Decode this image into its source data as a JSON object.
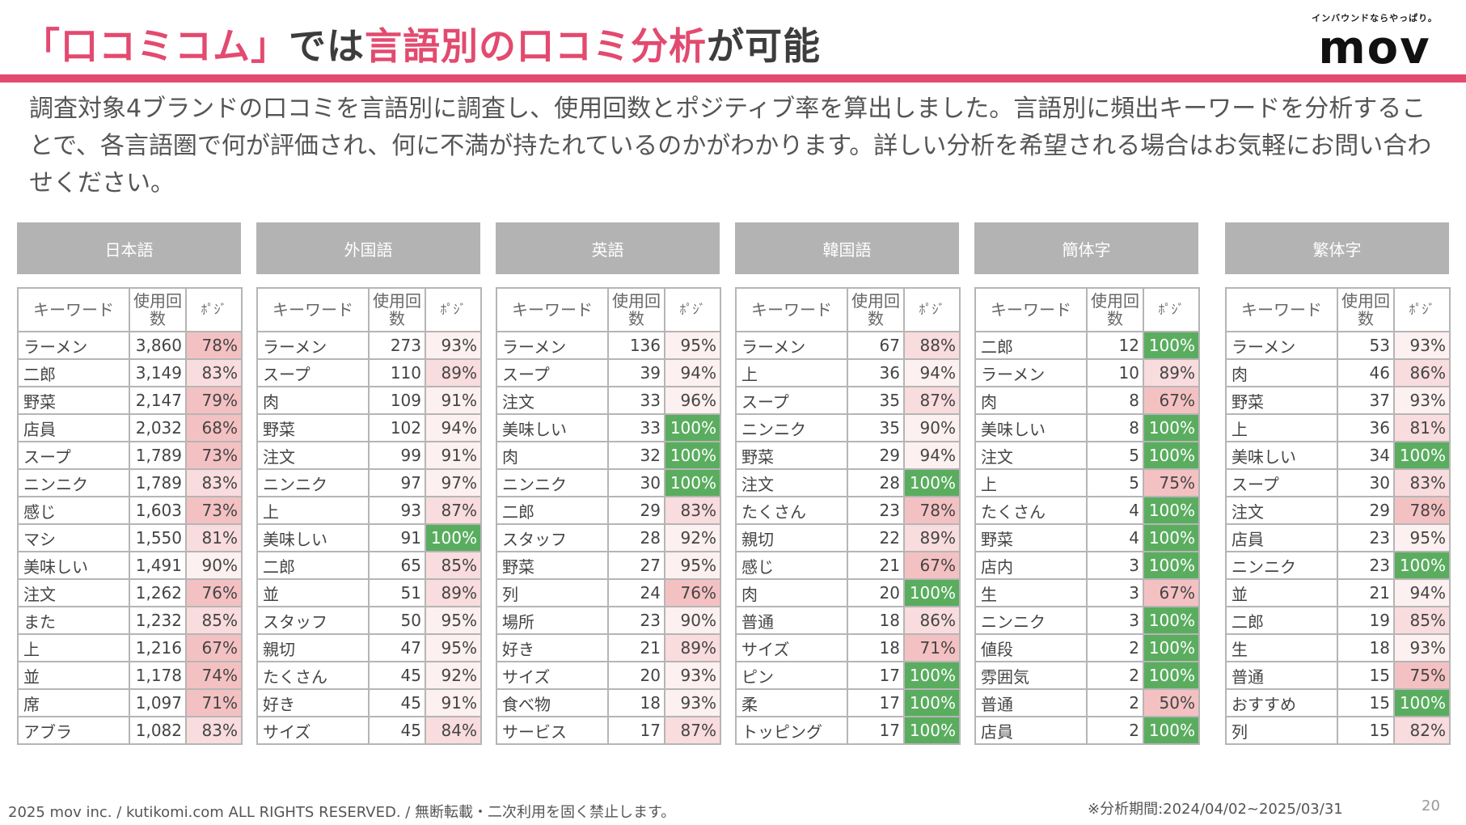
{
  "header": {
    "title_parts": [
      "「口コミコム」",
      "では",
      "言語別の口コミ分析",
      "が可能"
    ],
    "logo_tagline": "インバウンドならやっぱり。",
    "logo_word": "mov"
  },
  "description": "調査対象4ブランドの口コミを言語別に調査し、使用回数とポジティブ率を算出しました。言語別に頻出キーワードを分析することで、各言語圏で何が評価され、何に不満が持たれているのかがわかります。詳しい分析を希望される場合はお気軽にお問い合わせください。",
  "column_headers": {
    "keyword": "キーワード",
    "count": "使用回数",
    "posi": "ﾎﾟｼﾞ"
  },
  "colors": {
    "accent": "#e34a6f",
    "header_gray": "#b3b3b3",
    "green": "#5aad5f",
    "pink_dark": "#f4c1c3",
    "pink_mid": "#f9dcdd",
    "pink_light": "#fdf0f0"
  },
  "tables": [
    {
      "language": "日本語",
      "rows": [
        {
          "keyword": "ラーメン",
          "count": "3,860",
          "posi": "78%"
        },
        {
          "keyword": "二郎",
          "count": "3,149",
          "posi": "83%"
        },
        {
          "keyword": "野菜",
          "count": "2,147",
          "posi": "79%"
        },
        {
          "keyword": "店員",
          "count": "2,032",
          "posi": "68%"
        },
        {
          "keyword": "スープ",
          "count": "1,789",
          "posi": "73%"
        },
        {
          "keyword": "ニンニク",
          "count": "1,789",
          "posi": "83%"
        },
        {
          "keyword": "感じ",
          "count": "1,603",
          "posi": "73%"
        },
        {
          "keyword": "マシ",
          "count": "1,550",
          "posi": "81%"
        },
        {
          "keyword": "美味しい",
          "count": "1,491",
          "posi": "90%"
        },
        {
          "keyword": "注文",
          "count": "1,262",
          "posi": "76%"
        },
        {
          "keyword": "また",
          "count": "1,232",
          "posi": "85%"
        },
        {
          "keyword": "上",
          "count": "1,216",
          "posi": "67%"
        },
        {
          "keyword": "並",
          "count": "1,178",
          "posi": "74%"
        },
        {
          "keyword": "席",
          "count": "1,097",
          "posi": "71%"
        },
        {
          "keyword": "アブラ",
          "count": "1,082",
          "posi": "83%"
        }
      ]
    },
    {
      "language": "外国語",
      "rows": [
        {
          "keyword": "ラーメン",
          "count": "273",
          "posi": "93%"
        },
        {
          "keyword": "スープ",
          "count": "110",
          "posi": "89%"
        },
        {
          "keyword": "肉",
          "count": "109",
          "posi": "91%"
        },
        {
          "keyword": "野菜",
          "count": "102",
          "posi": "94%"
        },
        {
          "keyword": "注文",
          "count": "99",
          "posi": "91%"
        },
        {
          "keyword": "ニンニク",
          "count": "97",
          "posi": "97%"
        },
        {
          "keyword": "上",
          "count": "93",
          "posi": "87%"
        },
        {
          "keyword": "美味しい",
          "count": "91",
          "posi": "100%"
        },
        {
          "keyword": "二郎",
          "count": "65",
          "posi": "85%"
        },
        {
          "keyword": "並",
          "count": "51",
          "posi": "89%"
        },
        {
          "keyword": "スタッフ",
          "count": "50",
          "posi": "95%"
        },
        {
          "keyword": "親切",
          "count": "47",
          "posi": "95%"
        },
        {
          "keyword": "たくさん",
          "count": "45",
          "posi": "92%"
        },
        {
          "keyword": "好き",
          "count": "45",
          "posi": "91%"
        },
        {
          "keyword": "サイズ",
          "count": "45",
          "posi": "84%"
        }
      ]
    },
    {
      "language": "英語",
      "rows": [
        {
          "keyword": "ラーメン",
          "count": "136",
          "posi": "95%"
        },
        {
          "keyword": "スープ",
          "count": "39",
          "posi": "94%"
        },
        {
          "keyword": "注文",
          "count": "33",
          "posi": "96%"
        },
        {
          "keyword": "美味しい",
          "count": "33",
          "posi": "100%"
        },
        {
          "keyword": "肉",
          "count": "32",
          "posi": "100%"
        },
        {
          "keyword": "ニンニク",
          "count": "30",
          "posi": "100%"
        },
        {
          "keyword": "二郎",
          "count": "29",
          "posi": "83%"
        },
        {
          "keyword": "スタッフ",
          "count": "28",
          "posi": "92%"
        },
        {
          "keyword": "野菜",
          "count": "27",
          "posi": "95%"
        },
        {
          "keyword": "列",
          "count": "24",
          "posi": "76%"
        },
        {
          "keyword": "場所",
          "count": "23",
          "posi": "90%"
        },
        {
          "keyword": "好き",
          "count": "21",
          "posi": "89%"
        },
        {
          "keyword": "サイズ",
          "count": "20",
          "posi": "93%"
        },
        {
          "keyword": "食べ物",
          "count": "18",
          "posi": "93%"
        },
        {
          "keyword": "サービス",
          "count": "17",
          "posi": "87%"
        }
      ]
    },
    {
      "language": "韓国語",
      "rows": [
        {
          "keyword": "ラーメン",
          "count": "67",
          "posi": "88%"
        },
        {
          "keyword": "上",
          "count": "36",
          "posi": "94%"
        },
        {
          "keyword": "スープ",
          "count": "35",
          "posi": "87%"
        },
        {
          "keyword": "ニンニク",
          "count": "35",
          "posi": "90%"
        },
        {
          "keyword": "野菜",
          "count": "29",
          "posi": "94%"
        },
        {
          "keyword": "注文",
          "count": "28",
          "posi": "100%"
        },
        {
          "keyword": "たくさん",
          "count": "23",
          "posi": "78%"
        },
        {
          "keyword": "親切",
          "count": "22",
          "posi": "89%"
        },
        {
          "keyword": "感じ",
          "count": "21",
          "posi": "67%"
        },
        {
          "keyword": "肉",
          "count": "20",
          "posi": "100%"
        },
        {
          "keyword": "普通",
          "count": "18",
          "posi": "86%"
        },
        {
          "keyword": "サイズ",
          "count": "18",
          "posi": "71%"
        },
        {
          "keyword": "ピン",
          "count": "17",
          "posi": "100%"
        },
        {
          "keyword": "柔",
          "count": "17",
          "posi": "100%"
        },
        {
          "keyword": "トッピング",
          "count": "17",
          "posi": "100%"
        }
      ]
    },
    {
      "language": "簡体字",
      "rows": [
        {
          "keyword": "二郎",
          "count": "12",
          "posi": "100%"
        },
        {
          "keyword": "ラーメン",
          "count": "10",
          "posi": "89%"
        },
        {
          "keyword": "肉",
          "count": "8",
          "posi": "67%"
        },
        {
          "keyword": "美味しい",
          "count": "8",
          "posi": "100%"
        },
        {
          "keyword": "注文",
          "count": "5",
          "posi": "100%"
        },
        {
          "keyword": "上",
          "count": "5",
          "posi": "75%"
        },
        {
          "keyword": "たくさん",
          "count": "4",
          "posi": "100%"
        },
        {
          "keyword": "野菜",
          "count": "4",
          "posi": "100%"
        },
        {
          "keyword": "店内",
          "count": "3",
          "posi": "100%"
        },
        {
          "keyword": "生",
          "count": "3",
          "posi": "67%"
        },
        {
          "keyword": "ニンニク",
          "count": "3",
          "posi": "100%"
        },
        {
          "keyword": "値段",
          "count": "2",
          "posi": "100%"
        },
        {
          "keyword": "雰囲気",
          "count": "2",
          "posi": "100%"
        },
        {
          "keyword": "普通",
          "count": "2",
          "posi": "50%"
        },
        {
          "keyword": "店員",
          "count": "2",
          "posi": "100%"
        }
      ]
    },
    {
      "language": "繁体字",
      "rows": [
        {
          "keyword": "ラーメン",
          "count": "53",
          "posi": "93%"
        },
        {
          "keyword": "肉",
          "count": "46",
          "posi": "86%"
        },
        {
          "keyword": "野菜",
          "count": "37",
          "posi": "93%"
        },
        {
          "keyword": "上",
          "count": "36",
          "posi": "81%"
        },
        {
          "keyword": "美味しい",
          "count": "34",
          "posi": "100%"
        },
        {
          "keyword": "スープ",
          "count": "30",
          "posi": "83%"
        },
        {
          "keyword": "注文",
          "count": "29",
          "posi": "78%"
        },
        {
          "keyword": "店員",
          "count": "23",
          "posi": "95%"
        },
        {
          "keyword": "ニンニク",
          "count": "23",
          "posi": "100%"
        },
        {
          "keyword": "並",
          "count": "21",
          "posi": "94%"
        },
        {
          "keyword": "二郎",
          "count": "19",
          "posi": "85%"
        },
        {
          "keyword": "生",
          "count": "18",
          "posi": "93%"
        },
        {
          "keyword": "普通",
          "count": "15",
          "posi": "75%"
        },
        {
          "keyword": "おすすめ",
          "count": "15",
          "posi": "100%"
        },
        {
          "keyword": "列",
          "count": "15",
          "posi": "82%"
        }
      ]
    }
  ],
  "footer": {
    "copyright": "2025 mov inc. / kutikomi.com ALL RIGHTS RESERVED. / 無断転載・二次利用を固く禁止します。",
    "period": "※分析期間:2024/04/02~2025/03/31",
    "page": "20"
  }
}
